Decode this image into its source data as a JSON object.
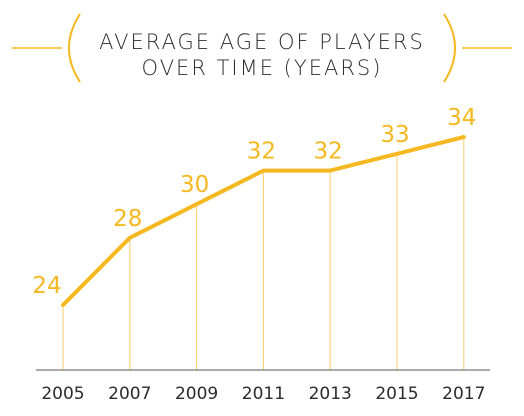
{
  "chart_data": {
    "type": "line",
    "title_lines": [
      "AVERAGE AGE OF PLAYERS",
      "OVER TIME (YEARS)"
    ],
    "x": [
      "2005",
      "2007",
      "2009",
      "2011",
      "2013",
      "2015",
      "2017"
    ],
    "values": [
      24,
      28,
      30,
      32,
      32,
      33,
      34
    ],
    "data_labels": [
      "24",
      "28",
      "30",
      "32",
      "32",
      "33",
      "34"
    ],
    "xlabel": "",
    "ylabel": "",
    "grid": false,
    "colors": {
      "line": "#f5b820",
      "drop_lines": "#f7cf6a",
      "axis": "#555555",
      "title_bracket": "#f5b820",
      "text": "#2b2b2b"
    }
  }
}
